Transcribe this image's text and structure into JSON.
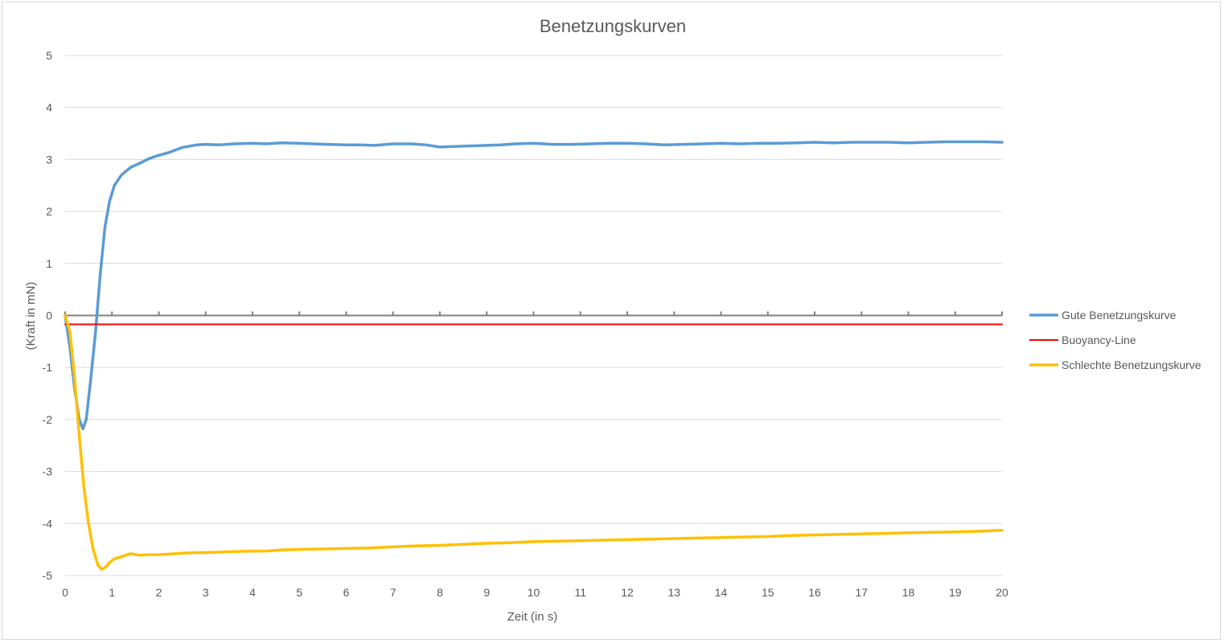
{
  "chart_data": {
    "type": "line",
    "title": "Benetzungskurven",
    "xlabel": "Zeit (in s)",
    "ylabel": "(Kraft in mN)",
    "xlim": [
      0,
      20
    ],
    "ylim": [
      -5,
      5
    ],
    "x_ticks": [
      0,
      1,
      2,
      3,
      4,
      5,
      6,
      7,
      8,
      9,
      10,
      11,
      12,
      13,
      14,
      15,
      16,
      17,
      18,
      19,
      20
    ],
    "y_ticks": [
      5,
      4,
      3,
      2,
      1,
      0,
      -1,
      -2,
      -3,
      -4,
      -5
    ],
    "grid": true,
    "legend_position": "right",
    "series": [
      {
        "name": "Gute Benetzungskurve",
        "color": "#5b9bd5",
        "points": [
          [
            0,
            0
          ],
          [
            0.1,
            -0.6
          ],
          [
            0.2,
            -1.4
          ],
          [
            0.3,
            -2.0
          ],
          [
            0.38,
            -2.18
          ],
          [
            0.45,
            -2.0
          ],
          [
            0.55,
            -1.2
          ],
          [
            0.65,
            -0.3
          ],
          [
            0.75,
            0.8
          ],
          [
            0.85,
            1.7
          ],
          [
            0.95,
            2.2
          ],
          [
            1.05,
            2.5
          ],
          [
            1.2,
            2.7
          ],
          [
            1.4,
            2.85
          ],
          [
            1.6,
            2.93
          ],
          [
            1.8,
            3.02
          ],
          [
            2.0,
            3.08
          ],
          [
            2.2,
            3.13
          ],
          [
            2.5,
            3.23
          ],
          [
            2.8,
            3.28
          ],
          [
            3.0,
            3.29
          ],
          [
            3.3,
            3.28
          ],
          [
            3.6,
            3.3
          ],
          [
            4.0,
            3.31
          ],
          [
            4.3,
            3.3
          ],
          [
            4.6,
            3.32
          ],
          [
            5.0,
            3.31
          ],
          [
            5.3,
            3.3
          ],
          [
            5.6,
            3.29
          ],
          [
            6.0,
            3.28
          ],
          [
            6.3,
            3.28
          ],
          [
            6.6,
            3.27
          ],
          [
            7.0,
            3.3
          ],
          [
            7.4,
            3.3
          ],
          [
            7.7,
            3.28
          ],
          [
            8.0,
            3.24
          ],
          [
            8.3,
            3.25
          ],
          [
            8.6,
            3.26
          ],
          [
            9.0,
            3.27
          ],
          [
            9.3,
            3.28
          ],
          [
            9.6,
            3.3
          ],
          [
            10.0,
            3.31
          ],
          [
            10.4,
            3.29
          ],
          [
            10.8,
            3.29
          ],
          [
            11.2,
            3.3
          ],
          [
            11.6,
            3.31
          ],
          [
            12.0,
            3.31
          ],
          [
            12.4,
            3.3
          ],
          [
            12.8,
            3.28
          ],
          [
            13.2,
            3.29
          ],
          [
            13.6,
            3.3
          ],
          [
            14.0,
            3.31
          ],
          [
            14.4,
            3.3
          ],
          [
            14.8,
            3.31
          ],
          [
            15.2,
            3.31
          ],
          [
            15.6,
            3.32
          ],
          [
            16.0,
            3.33
          ],
          [
            16.4,
            3.32
          ],
          [
            16.8,
            3.33
          ],
          [
            17.2,
            3.33
          ],
          [
            17.6,
            3.33
          ],
          [
            18.0,
            3.32
          ],
          [
            18.4,
            3.33
          ],
          [
            18.8,
            3.34
          ],
          [
            19.2,
            3.34
          ],
          [
            19.6,
            3.34
          ],
          [
            20.0,
            3.33
          ]
        ]
      },
      {
        "name": "Buoyancy-Line",
        "color": "#ff0000",
        "points": [
          [
            0,
            -0.17
          ],
          [
            20,
            -0.17
          ]
        ]
      },
      {
        "name": "Schlechte Benetzungskurve",
        "color": "#ffc000",
        "points": [
          [
            0,
            0
          ],
          [
            0.1,
            -0.3
          ],
          [
            0.2,
            -1.2
          ],
          [
            0.3,
            -2.3
          ],
          [
            0.4,
            -3.3
          ],
          [
            0.5,
            -4.0
          ],
          [
            0.6,
            -4.5
          ],
          [
            0.7,
            -4.8
          ],
          [
            0.78,
            -4.88
          ],
          [
            0.85,
            -4.85
          ],
          [
            0.95,
            -4.75
          ],
          [
            1.05,
            -4.68
          ],
          [
            1.2,
            -4.64
          ],
          [
            1.4,
            -4.58
          ],
          [
            1.6,
            -4.61
          ],
          [
            1.8,
            -4.6
          ],
          [
            2.0,
            -4.6
          ],
          [
            2.2,
            -4.59
          ],
          [
            2.5,
            -4.57
          ],
          [
            2.8,
            -4.56
          ],
          [
            3.0,
            -4.56
          ],
          [
            3.3,
            -4.55
          ],
          [
            3.6,
            -4.54
          ],
          [
            4.0,
            -4.53
          ],
          [
            4.3,
            -4.53
          ],
          [
            4.6,
            -4.51
          ],
          [
            5.0,
            -4.5
          ],
          [
            5.5,
            -4.49
          ],
          [
            6.0,
            -4.48
          ],
          [
            6.5,
            -4.47
          ],
          [
            7.0,
            -4.45
          ],
          [
            7.5,
            -4.43
          ],
          [
            8.0,
            -4.42
          ],
          [
            8.5,
            -4.4
          ],
          [
            9.0,
            -4.38
          ],
          [
            9.5,
            -4.37
          ],
          [
            10.0,
            -4.35
          ],
          [
            10.5,
            -4.34
          ],
          [
            11.0,
            -4.33
          ],
          [
            11.5,
            -4.32
          ],
          [
            12.0,
            -4.31
          ],
          [
            12.5,
            -4.3
          ],
          [
            13.0,
            -4.29
          ],
          [
            13.5,
            -4.28
          ],
          [
            14.0,
            -4.27
          ],
          [
            14.5,
            -4.26
          ],
          [
            15.0,
            -4.25
          ],
          [
            15.5,
            -4.23
          ],
          [
            16.0,
            -4.22
          ],
          [
            16.5,
            -4.21
          ],
          [
            17.0,
            -4.2
          ],
          [
            17.5,
            -4.19
          ],
          [
            18.0,
            -4.18
          ],
          [
            18.5,
            -4.17
          ],
          [
            19.0,
            -4.16
          ],
          [
            19.5,
            -4.15
          ],
          [
            20.0,
            -4.13
          ]
        ]
      }
    ]
  }
}
